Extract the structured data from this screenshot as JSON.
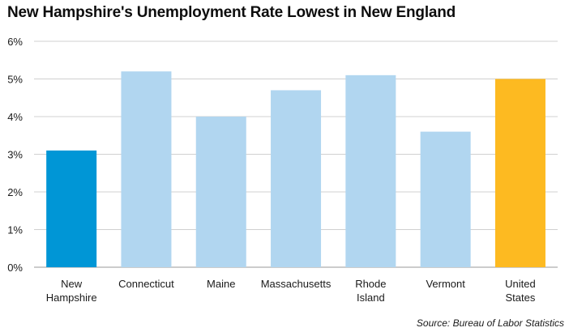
{
  "chart_data": {
    "type": "bar",
    "title": "New Hampshire's Unemployment Rate Lowest in New England",
    "source": "Source: Bureau of Labor Statistics",
    "categories": [
      [
        "New",
        "Hampshire"
      ],
      [
        "Connecticut"
      ],
      [
        "Maine"
      ],
      [
        "Massachusetts"
      ],
      [
        "Rhode",
        "Island"
      ],
      [
        "Vermont"
      ],
      [
        "United",
        "States"
      ]
    ],
    "values": [
      3.1,
      5.2,
      4.0,
      4.7,
      5.1,
      3.6,
      5.0
    ],
    "value_unit": "%",
    "bar_colors": [
      "#0096D6",
      "#B1D6F0",
      "#B1D6F0",
      "#B1D6F0",
      "#B1D6F0",
      "#B1D6F0",
      "#FDBA21"
    ],
    "ylim": [
      0,
      6
    ],
    "y_ticks": [
      "0%",
      "1%",
      "2%",
      "3%",
      "4%",
      "5%",
      "6%"
    ],
    "xlabel": "",
    "ylabel": "",
    "grid": true,
    "gridline_color": "#D0D0D0",
    "legend": "none"
  }
}
